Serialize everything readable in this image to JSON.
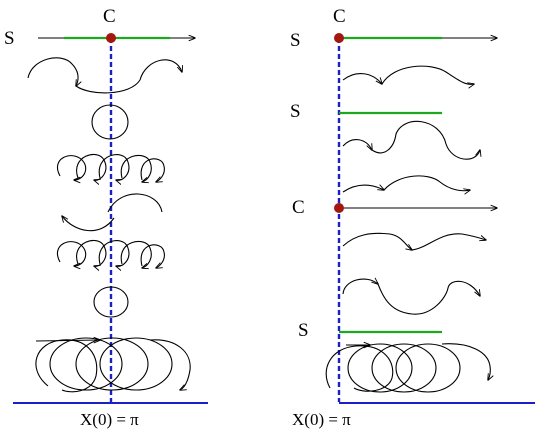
{
  "colors": {
    "axis": "#1a1fc8",
    "segment": "#1fa81f",
    "point": "#a3170f",
    "curve": "#000000"
  },
  "left_panel": {
    "top_label_s": "S",
    "top_label_c": "C",
    "bottom_caption": "X(0) = π"
  },
  "right_panel": {
    "labels": [
      "S",
      "S",
      "C",
      "S"
    ],
    "top_label_c": "C",
    "bottom_caption": "X(0) = π"
  }
}
